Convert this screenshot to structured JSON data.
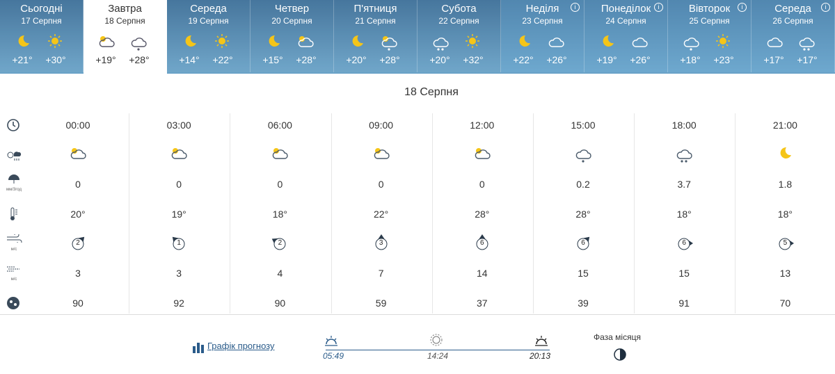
{
  "days": [
    {
      "name": "Сьогодні",
      "date": "17 Серпня",
      "night": "+21°",
      "day": "+30°"
    },
    {
      "name": "Завтра",
      "date": "18 Серпня",
      "night": "+19°",
      "day": "+28°"
    },
    {
      "name": "Середа",
      "date": "19 Серпня",
      "night": "+14°",
      "day": "+22°"
    },
    {
      "name": "Четвер",
      "date": "20 Серпня",
      "night": "+15°",
      "day": "+28°"
    },
    {
      "name": "П'ятниця",
      "date": "21 Серпня",
      "night": "+20°",
      "day": "+28°"
    },
    {
      "name": "Субота",
      "date": "22 Серпня",
      "night": "+20°",
      "day": "+32°"
    },
    {
      "name": "Неділя",
      "date": "23 Серпня",
      "night": "+22°",
      "day": "+26°"
    },
    {
      "name": "Понеділок",
      "date": "24 Серпня",
      "night": "+19°",
      "day": "+26°"
    },
    {
      "name": "Вівторок",
      "date": "25 Серпня",
      "night": "+18°",
      "day": "+23°"
    },
    {
      "name": "Середа",
      "date": "26 Серпня",
      "night": "+17°",
      "day": "+17°"
    }
  ],
  "detail": {
    "title": "18 Серпня",
    "hours": [
      "00:00",
      "03:00",
      "06:00",
      "09:00",
      "12:00",
      "15:00",
      "18:00",
      "21:00"
    ],
    "precip_unit": "мм/3год",
    "wind_unit": "м/с",
    "precipitation": [
      "0",
      "0",
      "0",
      "0",
      "0",
      "0.2",
      "3.7",
      "1.8"
    ],
    "temperature": [
      "20°",
      "19°",
      "18°",
      "22°",
      "28°",
      "28°",
      "18°",
      "18°"
    ],
    "wind": [
      "2",
      "1",
      "2",
      "3",
      "6",
      "6",
      "6",
      "5"
    ],
    "gusts": [
      "3",
      "3",
      "4",
      "7",
      "14",
      "15",
      "15",
      "13"
    ],
    "humidity": [
      "90",
      "92",
      "90",
      "59",
      "37",
      "39",
      "91",
      "70"
    ]
  },
  "footer": {
    "chart_link": "Графік прогнозу",
    "sunrise": "05:49",
    "noon": "14:24",
    "sunset": "20:13",
    "moon_phase": "Фаза місяця"
  }
}
